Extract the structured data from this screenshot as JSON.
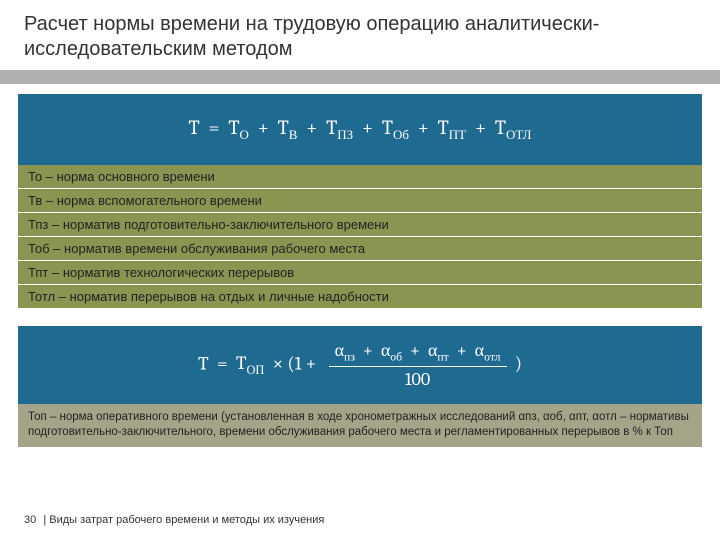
{
  "colors": {
    "formula_bg": "#1e6a91",
    "defs_bg": "#8c9452",
    "note_bg": "#a4a588",
    "grayband": "#b0b0b0",
    "text": "#333333"
  },
  "title": "Расчет нормы времени на трудовую операцию аналитически-исследовательским методом",
  "formula1": {
    "lhs": "T",
    "terms": [
      {
        "base": "T",
        "sub": "О"
      },
      {
        "base": "T",
        "sub": "В"
      },
      {
        "base": "T",
        "sub": "ПЗ"
      },
      {
        "base": "T",
        "sub": "Об"
      },
      {
        "base": "T",
        "sub": "ПТ"
      },
      {
        "base": "T",
        "sub": "ОТЛ"
      }
    ]
  },
  "definitions": [
    "То – норма основного времени",
    "Тв – норма вспомогательного времени",
    "Тпз – норматив подготовительно-заключительного времени",
    "Тоб – норматив времени обслуживания рабочего места",
    "Тпт – норматив технологических перерывов",
    "Тотл – норматив перерывов на отдых и личные надобности"
  ],
  "formula2": {
    "lhs": "T",
    "lead": {
      "base": "T",
      "sub": "ОП"
    },
    "one": "1",
    "alphas": [
      {
        "base": "α",
        "sub": "пз"
      },
      {
        "base": "α",
        "sub": "об"
      },
      {
        "base": "α",
        "sub": "пт"
      },
      {
        "base": "α",
        "sub": "отл"
      }
    ],
    "den": "100"
  },
  "note": "Топ – норма оперативного времени (установленная в ходе хронометражных исследований αпз, αоб, αпт, αотл – нормативы подготовительно-заключительного, времени обслуживания рабочего места и регламентированных перерывов в % к Топ",
  "footer": {
    "page": "30",
    "sep": "|",
    "caption": "Виды затрат рабочего времени и методы их изучения"
  }
}
